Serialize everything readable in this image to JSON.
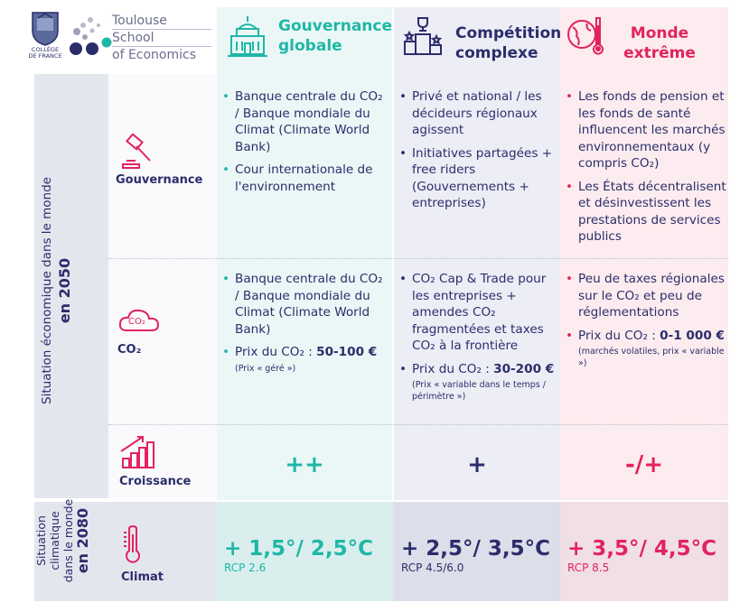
{
  "logo": {
    "college": [
      "COLLÈGE",
      "DE FRANCE"
    ],
    "tse_lines": [
      "Toulouse",
      "School",
      "of Economics"
    ]
  },
  "columns": [
    {
      "title_line1": "Gouvernance",
      "title_line2": "globale",
      "color": "#1fb7a6"
    },
    {
      "title_line1": "Compétition",
      "title_line2": "complexe",
      "color": "#2b2d6b"
    },
    {
      "title_line1": "Monde",
      "title_line2": "extrême",
      "color": "#e2235f"
    }
  ],
  "side_labels": {
    "s2050_line1": "Situation économique dans le monde",
    "s2050_line2": "en 2050",
    "s2080_line1": "Situation",
    "s2080_line2": "climatique",
    "s2080_line3": "dans le monde",
    "s2080_line4": "en 2080"
  },
  "rows": {
    "gouvernance": {
      "label": "Gouvernance",
      "col1": [
        "Banque centrale du CO₂ / Banque mondiale du Climat (Climate World Bank)",
        "Cour internationale de l'environnement"
      ],
      "col2": [
        "Privé et national / les décideurs régionaux agissent",
        "Initiatives partagées + free riders (Gouvernements + entreprises)"
      ],
      "col3": [
        "Les fonds de pension et les fonds de santé influencent les marchés environnementaux (y compris CO₂)",
        "Les États décentralisent et désinvestissent les prestations de services publics"
      ]
    },
    "co2": {
      "label": "CO₂",
      "icon_text": "CO₂",
      "col1": {
        "b1": "Banque centrale du CO₂ / Banque mondiale du Climat (Climate World Bank)",
        "b2_prefix": "Prix du CO₂ : ",
        "b2_value": "50-100 €",
        "b2_note": "(Prix « géré »)"
      },
      "col2": {
        "b1": "CO₂ Cap & Trade pour les entreprises + amendes CO₂ fragmentées et taxes CO₂ à la frontière",
        "b2_prefix": "Prix du CO₂ : ",
        "b2_value": "30-200 €",
        "b2_note": "(Prix « variable dans le temps / périmètre »)"
      },
      "col3": {
        "b1": "Peu de taxes régionales sur le CO₂ et peu de réglementations",
        "b2_prefix": "Prix du CO₂ : ",
        "b2_value": "0-1 000 €",
        "b2_note": "(marchés volatiles, prix « variable »)"
      }
    },
    "croissance": {
      "label": "Croissance",
      "col1": "++",
      "col2": "+",
      "col3": "-/+"
    },
    "climat": {
      "label": "Climat",
      "col1": {
        "temp": "+ 1,5°/ 2,5°C",
        "rcp": "RCP 2.6"
      },
      "col2": {
        "temp": "+ 2,5°/ 3,5°C",
        "rcp": "RCP 4.5/6.0"
      },
      "col3": {
        "temp": "+ 3,5°/ 4,5°C",
        "rcp": "RCP 8.5"
      }
    }
  }
}
